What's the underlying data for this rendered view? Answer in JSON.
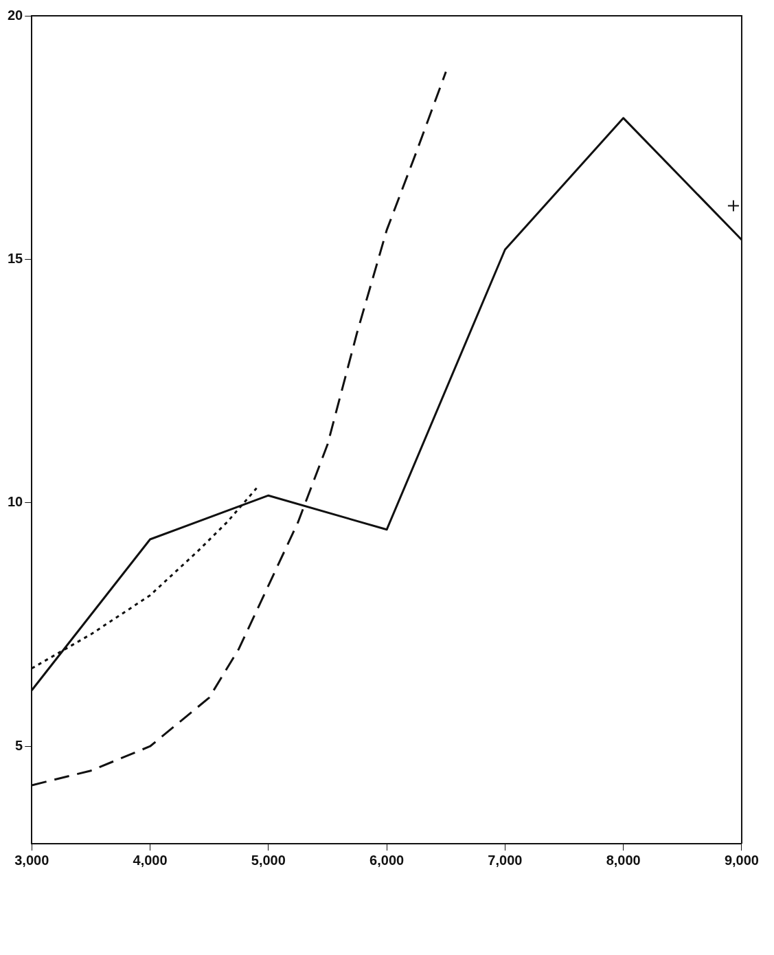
{
  "chart_data": {
    "type": "line",
    "xlim": [
      3000,
      9000
    ],
    "ylim": [
      3,
      20
    ],
    "xticks": [
      {
        "value": 3000,
        "label": "3,000"
      },
      {
        "value": 4000,
        "label": "4,000"
      },
      {
        "value": 5000,
        "label": "5,000"
      },
      {
        "value": 6000,
        "label": "6,000"
      },
      {
        "value": 7000,
        "label": "7,000"
      },
      {
        "value": 8000,
        "label": "8,000"
      },
      {
        "value": 9000,
        "label": "9,000"
      }
    ],
    "yticks": [
      5,
      10,
      15,
      20
    ],
    "grid": false,
    "legend": false,
    "marker": "none",
    "series": [
      {
        "color": "#111111",
        "line_style": "solid",
        "x": [
          3000,
          4000,
          5000,
          6000,
          7000,
          8000,
          9000
        ],
        "values": [
          6.15,
          9.25,
          10.15,
          9.45,
          15.2,
          17.9,
          15.4
        ]
      },
      {
        "color": "#111111",
        "line_style": "dashed",
        "x": [
          3000,
          3500,
          4000,
          4500,
          4750,
          5000,
          5250,
          5500,
          5750,
          6000,
          6250,
          6500
        ],
        "values": [
          4.2,
          4.5,
          5.0,
          6.0,
          7.0,
          8.3,
          9.6,
          11.2,
          13.5,
          15.6,
          17.2,
          18.85
        ]
      },
      {
        "color": "#111111",
        "line_style": "dotted",
        "x": [
          3000,
          3500,
          4000,
          4400,
          4650,
          4900
        ],
        "values": [
          6.6,
          7.3,
          8.1,
          9.0,
          9.6,
          10.3
        ]
      },
      {
        "type": "scatter",
        "marker": "cross",
        "color": "#111111",
        "x": [
          8930
        ],
        "values": [
          16.1
        ]
      }
    ]
  }
}
